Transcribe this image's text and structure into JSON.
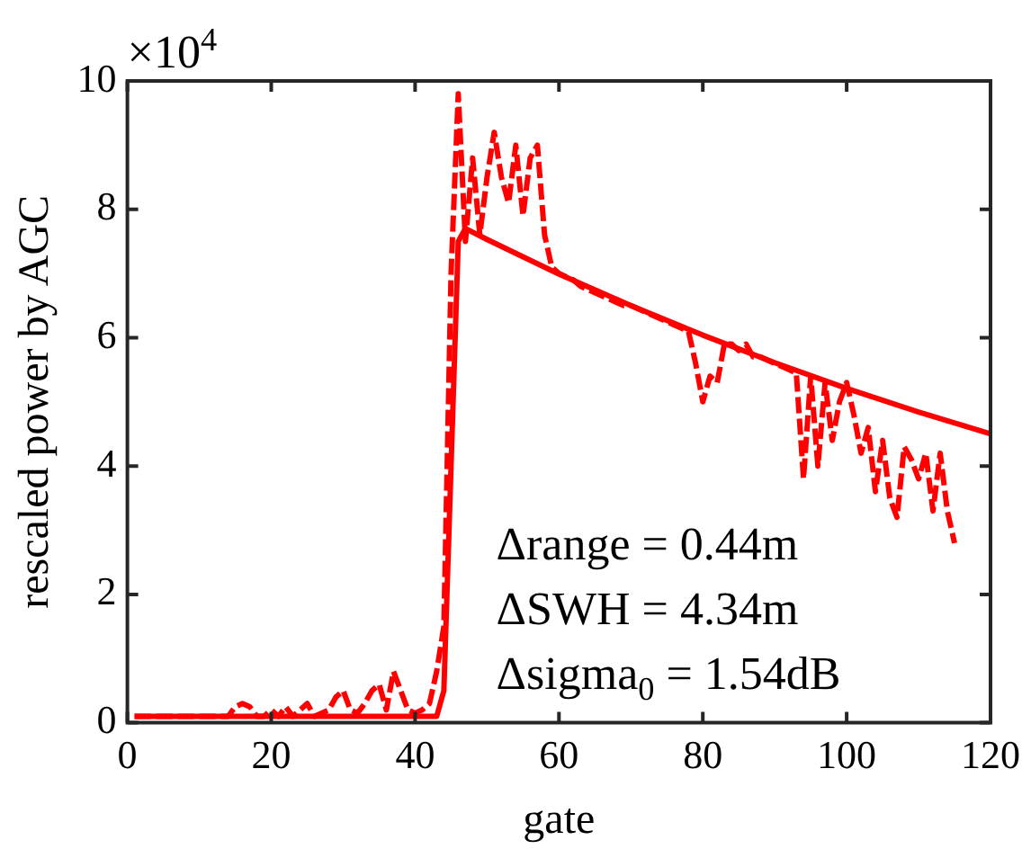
{
  "chart_data": {
    "type": "line",
    "xlabel": "gate",
    "ylabel": "rescaled power by AGC",
    "xlim": [
      0,
      120
    ],
    "xticks": [
      0,
      20,
      40,
      60,
      80,
      100,
      120
    ],
    "ylim": [
      0,
      10
    ],
    "yticks": [
      0,
      2,
      4,
      6,
      8,
      10
    ],
    "grid": false,
    "legend": false,
    "marker": "none",
    "annotations": [
      "×10$^{4}$",
      "Δrange = 0.44m",
      "ΔSWH = 4.34m",
      "Δsigma$_{0}$ = 1.54dB"
    ],
    "series": [
      {
        "color": "#ff0000",
        "line_style": "dashed",
        "x": [
          1,
          2,
          3,
          4,
          5,
          6,
          7,
          8,
          9,
          10,
          11,
          12,
          13,
          14,
          15,
          16,
          17,
          18,
          19,
          20,
          21,
          22,
          23,
          24,
          25,
          26,
          27,
          28,
          29,
          30,
          31,
          32,
          33,
          34,
          35,
          36,
          37,
          38,
          39,
          40,
          41,
          42,
          43,
          44,
          45,
          46,
          47,
          48,
          49,
          50,
          51,
          52,
          53,
          54,
          55,
          56,
          57,
          58,
          59,
          60,
          61,
          62,
          63,
          64,
          65,
          66,
          67,
          68,
          69,
          70,
          71,
          72,
          73,
          74,
          75,
          76,
          77,
          78,
          79,
          80,
          81,
          82,
          83,
          84,
          85,
          86,
          87,
          88,
          89,
          90,
          91,
          92,
          93,
          94,
          95,
          96,
          97,
          98,
          99,
          100,
          101,
          102,
          103,
          104,
          105,
          106,
          107,
          108,
          109,
          110,
          111,
          112,
          113,
          114,
          115
        ],
        "values": [
          0.1,
          0.1,
          0.1,
          0.1,
          0.1,
          0.1,
          0.1,
          0.1,
          0.1,
          0.1,
          0.1,
          0.1,
          0.1,
          0.1,
          0.25,
          0.3,
          0.25,
          0.1,
          0.1,
          0.2,
          0.1,
          0.25,
          0.1,
          0.2,
          0.3,
          0.1,
          0.15,
          0.2,
          0.4,
          0.5,
          0.2,
          0.15,
          0.3,
          0.5,
          0.6,
          0.2,
          0.8,
          0.5,
          0.2,
          0.15,
          0.2,
          0.3,
          0.8,
          1.5,
          7,
          9.8,
          7.5,
          8.8,
          7.6,
          8.5,
          9.2,
          8.5,
          8.1,
          9,
          7.9,
          8.8,
          9,
          7.6,
          7.1,
          7,
          6.95,
          6.9,
          6.8,
          6.75,
          6.7,
          6.65,
          6.6,
          6.55,
          6.5,
          6.5,
          6.45,
          6.4,
          6.35,
          6.3,
          6.25,
          6.2,
          6.15,
          6.1,
          5.6,
          5,
          5.4,
          5.3,
          5.9,
          5.9,
          5.8,
          5.9,
          5.7,
          5.7,
          5.65,
          5.6,
          5.55,
          5.5,
          5.45,
          3.8,
          5.4,
          4,
          5.3,
          4.4,
          5,
          5.3,
          4.8,
          4.2,
          4.6,
          3.6,
          4.4,
          3.5,
          3.2,
          4.3,
          4.1,
          3.8,
          4.2,
          3.3,
          4.2,
          3.3,
          2.8
        ]
      },
      {
        "color": "#ff0000",
        "line_style": "solid",
        "x": [
          1,
          43,
          44,
          45,
          46,
          47,
          50,
          60,
          70,
          80,
          90,
          100,
          110,
          120
        ],
        "values": [
          0.1,
          0.1,
          0.5,
          4,
          7.5,
          7.7,
          7.53,
          6.99,
          6.5,
          6.04,
          5.61,
          5.21,
          4.84,
          4.5
        ]
      }
    ]
  }
}
